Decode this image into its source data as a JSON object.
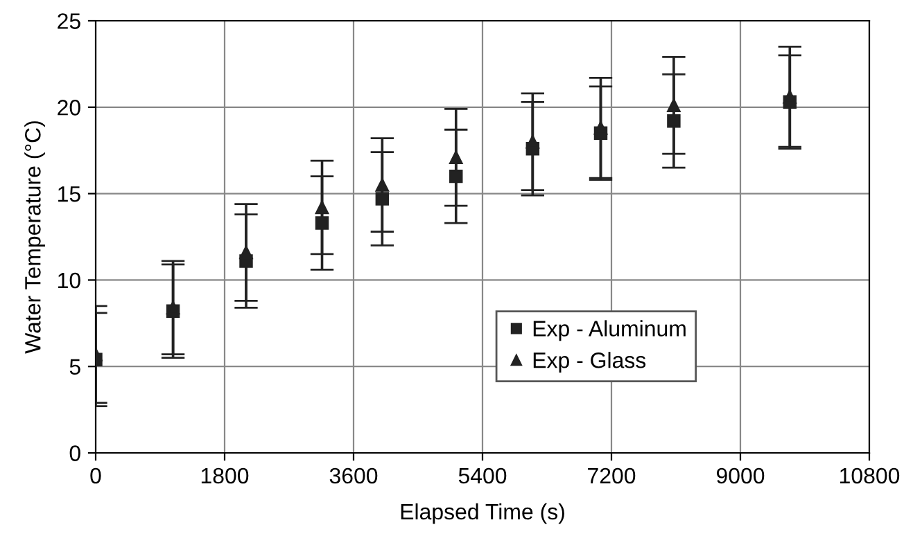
{
  "chart_data": {
    "type": "scatter",
    "xlabel": "Elapsed Time (s)",
    "ylabel": "Water Temperature (°C)",
    "xlim": [
      0,
      10800
    ],
    "xticks": [
      0,
      1800,
      3600,
      5400,
      7200,
      9000,
      10800
    ],
    "ylim": [
      0,
      25
    ],
    "yticks": [
      0,
      5,
      10,
      15,
      20,
      25
    ],
    "grid": true,
    "legend": "bottom right",
    "series": [
      {
        "name": "Exp - Aluminum",
        "color": "#222222",
        "marker": "square",
        "x": [
          0,
          1080,
          2100,
          3160,
          4000,
          5030,
          6100,
          7050,
          8070,
          9690
        ],
        "values": [
          5.4,
          8.2,
          11.1,
          13.3,
          14.7,
          16.0,
          17.6,
          18.5,
          19.2,
          20.3
        ],
        "errors": [
          2.7,
          2.7,
          2.7,
          2.7,
          2.7,
          2.7,
          2.7,
          2.7,
          2.7,
          2.7
        ]
      },
      {
        "name": "Exp - Glass",
        "color": "#222222",
        "marker": "triangle",
        "x": [
          0,
          1080,
          2100,
          3160,
          4000,
          5030,
          6100,
          7050,
          8070,
          9690
        ],
        "values": [
          5.7,
          8.4,
          11.6,
          14.2,
          15.5,
          17.1,
          18.0,
          18.8,
          20.1,
          20.6
        ],
        "errors": [
          2.8,
          2.7,
          2.8,
          2.7,
          2.7,
          2.8,
          2.8,
          2.9,
          2.8,
          2.9
        ]
      }
    ]
  }
}
